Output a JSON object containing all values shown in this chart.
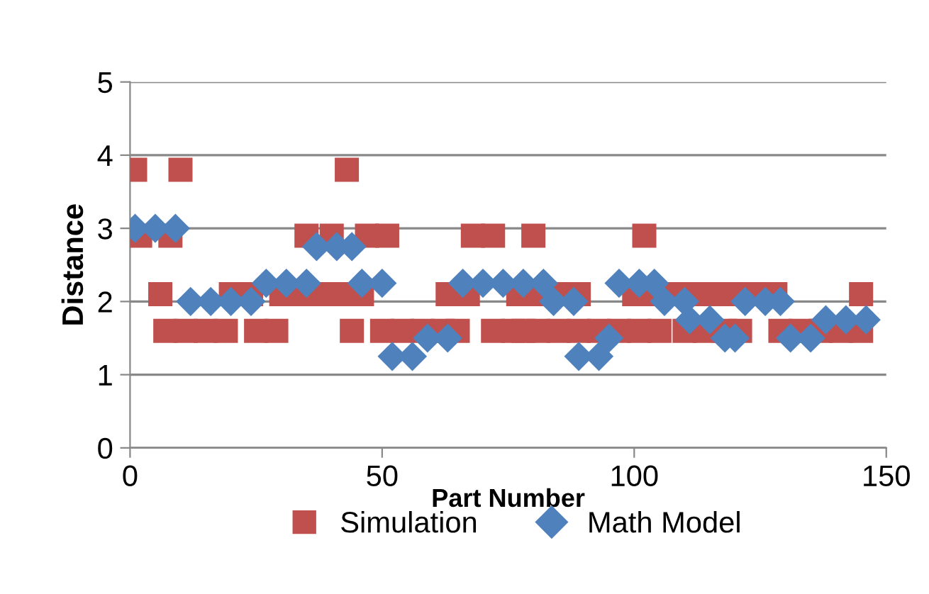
{
  "chart_data": {
    "type": "scatter",
    "xlabel": "Part Number",
    "ylabel": "Distance",
    "xlim": [
      0,
      150
    ],
    "xticks": [
      0,
      50,
      100,
      150
    ],
    "ylim": [
      0,
      5
    ],
    "yticks": [
      0,
      1,
      2,
      3,
      4,
      5
    ],
    "grid": "y",
    "legend": "bottom",
    "series": [
      {
        "name": "Simulation",
        "color": "#c0504d",
        "marker": "square",
        "x": [
          1,
          10,
          43,
          2,
          8,
          35,
          40,
          47,
          51,
          68,
          72,
          80,
          102,
          6,
          20,
          24,
          30,
          34,
          38,
          42,
          46,
          63,
          67,
          77,
          81,
          85,
          89,
          100,
          104,
          108,
          112,
          116,
          120,
          124,
          128,
          145,
          7,
          11,
          15,
          19,
          25,
          29,
          44,
          50,
          54,
          58,
          62,
          65,
          72,
          76,
          78,
          81,
          85,
          89,
          93,
          97,
          101,
          105,
          110,
          114,
          118,
          121,
          129,
          133,
          137,
          141,
          145
        ],
        "values": [
          3.8,
          3.8,
          3.8,
          2.9,
          2.9,
          2.9,
          2.9,
          2.9,
          2.9,
          2.9,
          2.9,
          2.9,
          2.9,
          2.1,
          2.1,
          2.1,
          2.1,
          2.1,
          2.1,
          2.1,
          2.1,
          2.1,
          2.1,
          2.1,
          2.1,
          2.1,
          2.1,
          2.1,
          2.1,
          2.1,
          2.1,
          2.1,
          2.1,
          2.1,
          2.1,
          2.1,
          1.6,
          1.6,
          1.6,
          1.6,
          1.6,
          1.6,
          1.6,
          1.6,
          1.6,
          1.6,
          1.6,
          1.6,
          1.6,
          1.6,
          1.6,
          1.6,
          1.6,
          1.6,
          1.6,
          1.6,
          1.6,
          1.6,
          1.6,
          1.6,
          1.6,
          1.6,
          1.6,
          1.6,
          1.6,
          1.6,
          1.6
        ]
      },
      {
        "name": "Math Model",
        "color": "#4f81bd",
        "marker": "diamond",
        "x": [
          1,
          5,
          9,
          12,
          16,
          20,
          24,
          27,
          31,
          35,
          37,
          41,
          44,
          46,
          50,
          52,
          56,
          59,
          63,
          66,
          70,
          74,
          78,
          82,
          84,
          88,
          89,
          93,
          95,
          97,
          101,
          104,
          106,
          110,
          111,
          115,
          118,
          120,
          122,
          126,
          129,
          131,
          135,
          138,
          142,
          146
        ],
        "values": [
          3,
          3,
          3,
          2,
          2,
          2,
          2,
          2.25,
          2.25,
          2.25,
          2.75,
          2.75,
          2.75,
          2.25,
          2.25,
          1.25,
          1.25,
          1.5,
          1.5,
          2.25,
          2.25,
          2.25,
          2.25,
          2.25,
          2,
          2,
          1.25,
          1.25,
          1.5,
          2.25,
          2.25,
          2.25,
          2,
          2,
          1.75,
          1.75,
          1.5,
          1.5,
          2,
          2,
          2,
          1.5,
          1.5,
          1.75,
          1.75,
          1.75
        ]
      }
    ]
  }
}
